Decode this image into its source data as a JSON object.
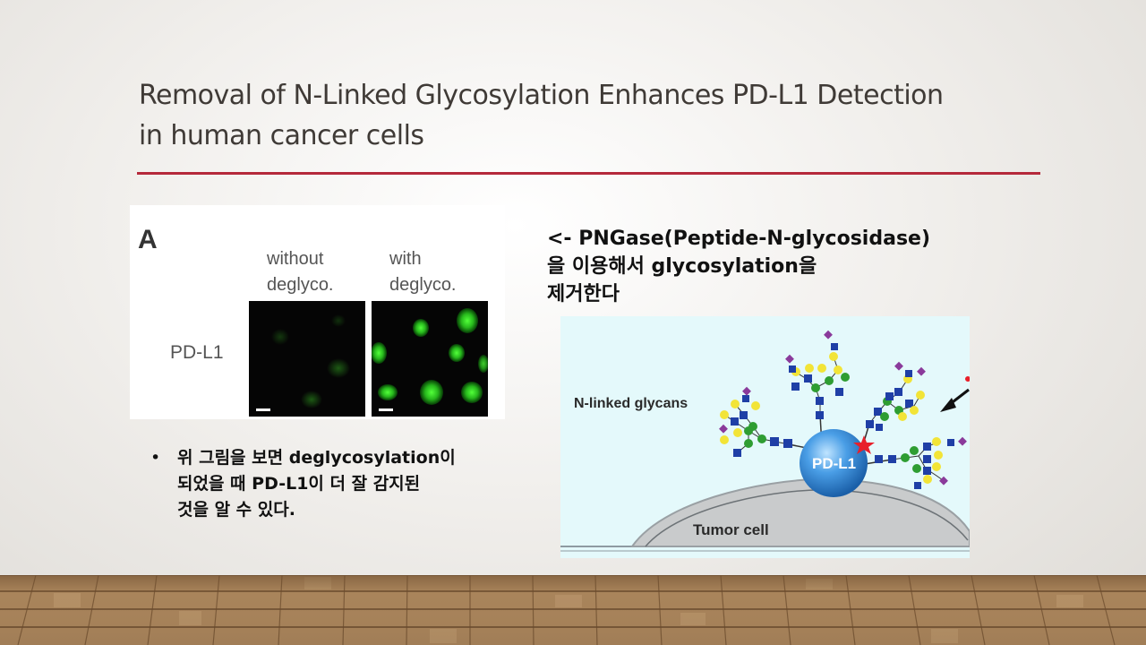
{
  "slide": {
    "title_line1": "Removal of N-Linked Glycosylation Enhances PD-L1 Detection",
    "title_line2": "in human cancer cells"
  },
  "figure_a": {
    "panel_label": "A",
    "col1_line1": "without",
    "col1_line2": "deglyco.",
    "col2_line1": "with",
    "col2_line2": "deglyco.",
    "row_label": "PD-L1"
  },
  "pngase_note": {
    "line1": "<- PNGase(Peptide-N-glycosidase)",
    "line2": "을 이용해서 glycosylation을",
    "line3": "제거한다"
  },
  "bullet": {
    "marker": "•",
    "line1": "위 그림을 보면 deglycosylation이",
    "line2": "되었을 때 PD-L1이 더 잘 감지된",
    "line3": "것을 알 수 있다."
  },
  "figure_b": {
    "glycans_label": "N-linked glycans",
    "protein_label": "PD-L1",
    "cell_label": "Tumor cell"
  }
}
